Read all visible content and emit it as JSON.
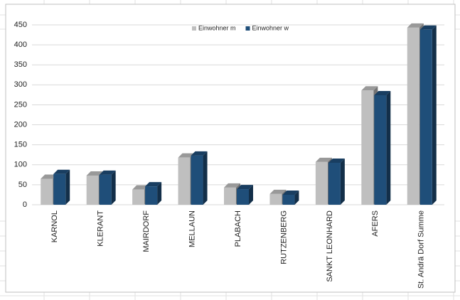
{
  "chart_data": {
    "type": "bar",
    "categories": [
      "KARNOL",
      "KLERANT",
      "MAIRDORF",
      "MELLAUN",
      "PLABACH",
      "RUTZENBERG",
      "SANKT LEONHARD",
      "AFERS",
      "St. Andrä Dorf Summe"
    ],
    "series": [
      {
        "name": "Einwohner m",
        "color": "#bfbfbf",
        "values": [
          65,
          73,
          38,
          118,
          43,
          27,
          107,
          286,
          443
        ]
      },
      {
        "name": "Einwohner w",
        "color": "#1f4e79",
        "values": [
          77,
          75,
          46,
          123,
          39,
          25,
          105,
          274,
          438
        ]
      }
    ],
    "ylim": [
      0,
      450
    ],
    "yticks": [
      0,
      50,
      100,
      150,
      200,
      250,
      300,
      350,
      400,
      450
    ],
    "grid": true
  }
}
